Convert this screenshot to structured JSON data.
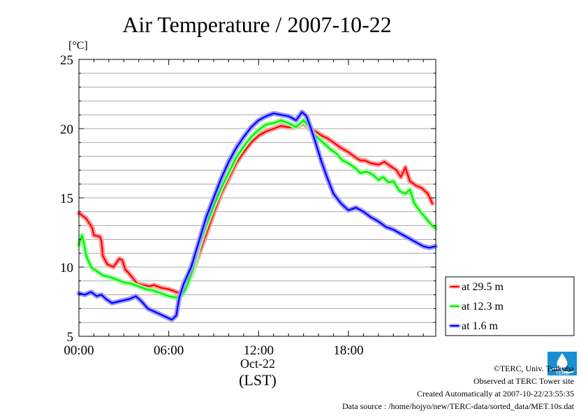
{
  "chart_data": {
    "type": "line",
    "title": "Air Temperature / 2007-10-22",
    "ylabel": "[°C]",
    "xlabel": "(LST)",
    "x_date_label": "Oct-22",
    "xlim": [
      0,
      23.83
    ],
    "ylim": [
      5,
      25
    ],
    "x_ticks": [
      {
        "value": 0,
        "label": "00:00"
      },
      {
        "value": 6,
        "label": "06:00"
      },
      {
        "value": 12,
        "label": "12:00"
      },
      {
        "value": 18,
        "label": "18:00"
      }
    ],
    "y_ticks": [
      {
        "value": 5,
        "label": "5"
      },
      {
        "value": 10,
        "label": "10"
      },
      {
        "value": 15,
        "label": "15"
      },
      {
        "value": 20,
        "label": "20"
      },
      {
        "value": 25,
        "label": "25"
      }
    ],
    "y_grid_step": 1,
    "grid": true,
    "legend_position": "right",
    "series": [
      {
        "name": "at 29.5 m",
        "color": "#ff0000",
        "halo": "#ff9b9b",
        "points": [
          [
            0,
            13.9
          ],
          [
            0.5,
            13.5
          ],
          [
            0.9,
            12.8
          ],
          [
            1.0,
            12.3
          ],
          [
            1.4,
            12.2
          ],
          [
            1.5,
            11.9
          ],
          [
            1.6,
            10.8
          ],
          [
            1.9,
            10.2
          ],
          [
            2.3,
            10.0
          ],
          [
            2.7,
            10.6
          ],
          [
            2.9,
            10.5
          ],
          [
            3.1,
            9.8
          ],
          [
            3.3,
            9.6
          ],
          [
            3.6,
            9.2
          ],
          [
            3.9,
            8.8
          ],
          [
            4.3,
            8.7
          ],
          [
            4.7,
            8.6
          ],
          [
            5.0,
            8.7
          ],
          [
            5.5,
            8.5
          ],
          [
            6.0,
            8.4
          ],
          [
            6.5,
            8.2
          ],
          [
            6.8,
            8.1
          ],
          [
            7.0,
            8.4
          ],
          [
            7.5,
            9.4
          ],
          [
            8.0,
            10.9
          ],
          [
            8.5,
            12.4
          ],
          [
            9.0,
            13.9
          ],
          [
            9.5,
            15.3
          ],
          [
            10.0,
            16.4
          ],
          [
            10.5,
            17.5
          ],
          [
            11.0,
            18.3
          ],
          [
            11.5,
            19.0
          ],
          [
            12.0,
            19.5
          ],
          [
            12.5,
            19.8
          ],
          [
            13.0,
            20.0
          ],
          [
            13.5,
            20.2
          ],
          [
            14.0,
            20.1
          ],
          [
            14.5,
            20.1
          ],
          [
            15.0,
            20.4
          ],
          [
            15.4,
            20.0
          ],
          [
            15.8,
            19.8
          ],
          [
            16.2,
            19.5
          ],
          [
            16.6,
            19.3
          ],
          [
            17.0,
            19.0
          ],
          [
            17.5,
            18.6
          ],
          [
            18.0,
            18.3
          ],
          [
            18.5,
            17.9
          ],
          [
            18.8,
            17.7
          ],
          [
            19.1,
            17.7
          ],
          [
            19.5,
            17.5
          ],
          [
            20.0,
            17.4
          ],
          [
            20.4,
            17.6
          ],
          [
            20.8,
            17.3
          ],
          [
            21.2,
            17.0
          ],
          [
            21.5,
            16.5
          ],
          [
            21.8,
            17.2
          ],
          [
            22.1,
            16.2
          ],
          [
            22.5,
            15.9
          ],
          [
            22.9,
            15.7
          ],
          [
            23.3,
            15.3
          ],
          [
            23.6,
            14.6
          ]
        ]
      },
      {
        "name": "at 12.3 m",
        "color": "#00ee00",
        "halo": "#9bff9b",
        "points": [
          [
            0,
            11.6
          ],
          [
            0.2,
            12.3
          ],
          [
            0.3,
            11.9
          ],
          [
            0.5,
            10.8
          ],
          [
            0.8,
            10.0
          ],
          [
            1.2,
            9.7
          ],
          [
            1.6,
            9.4
          ],
          [
            2.0,
            9.3
          ],
          [
            2.5,
            9.1
          ],
          [
            3.0,
            8.9
          ],
          [
            3.5,
            8.8
          ],
          [
            4.0,
            8.6
          ],
          [
            4.5,
            8.4
          ],
          [
            5.0,
            8.3
          ],
          [
            5.5,
            8.1
          ],
          [
            6.0,
            7.9
          ],
          [
            6.5,
            7.8
          ],
          [
            6.9,
            8.0
          ],
          [
            7.2,
            8.6
          ],
          [
            7.6,
            9.8
          ],
          [
            8.0,
            11.4
          ],
          [
            8.5,
            13.0
          ],
          [
            9.0,
            14.4
          ],
          [
            9.5,
            15.7
          ],
          [
            10.0,
            16.8
          ],
          [
            10.5,
            17.9
          ],
          [
            11.0,
            18.7
          ],
          [
            11.5,
            19.4
          ],
          [
            12.0,
            19.9
          ],
          [
            12.5,
            20.3
          ],
          [
            13.0,
            20.4
          ],
          [
            13.5,
            20.6
          ],
          [
            14.0,
            20.4
          ],
          [
            14.5,
            20.1
          ],
          [
            15.0,
            20.6
          ],
          [
            15.4,
            20.1
          ],
          [
            15.7,
            19.6
          ],
          [
            16.0,
            19.3
          ],
          [
            16.4,
            18.9
          ],
          [
            16.8,
            18.5
          ],
          [
            17.2,
            18.2
          ],
          [
            17.6,
            17.7
          ],
          [
            18.0,
            17.5
          ],
          [
            18.4,
            17.2
          ],
          [
            18.8,
            16.8
          ],
          [
            19.2,
            16.9
          ],
          [
            19.6,
            16.7
          ],
          [
            20.0,
            16.3
          ],
          [
            20.3,
            16.5
          ],
          [
            20.7,
            16.1
          ],
          [
            21.0,
            16.2
          ],
          [
            21.4,
            15.5
          ],
          [
            21.8,
            15.3
          ],
          [
            22.1,
            15.6
          ],
          [
            22.4,
            14.6
          ],
          [
            22.8,
            14.0
          ],
          [
            23.2,
            13.5
          ],
          [
            23.5,
            13.1
          ],
          [
            23.8,
            12.8
          ]
        ]
      },
      {
        "name": "at 1.6 m",
        "color": "#0000ff",
        "halo": "#9b9bff",
        "points": [
          [
            0,
            8.1
          ],
          [
            0.4,
            8.0
          ],
          [
            0.8,
            8.2
          ],
          [
            1.2,
            7.9
          ],
          [
            1.5,
            8.0
          ],
          [
            1.8,
            7.7
          ],
          [
            2.2,
            7.4
          ],
          [
            2.6,
            7.5
          ],
          [
            3.0,
            7.6
          ],
          [
            3.4,
            7.7
          ],
          [
            3.8,
            7.9
          ],
          [
            4.2,
            7.5
          ],
          [
            4.6,
            7.0
          ],
          [
            5.0,
            6.8
          ],
          [
            5.4,
            6.6
          ],
          [
            5.8,
            6.4
          ],
          [
            6.2,
            6.2
          ],
          [
            6.5,
            6.5
          ],
          [
            6.7,
            7.8
          ],
          [
            7.0,
            8.8
          ],
          [
            7.5,
            10.0
          ],
          [
            8.0,
            11.8
          ],
          [
            8.5,
            13.6
          ],
          [
            9.0,
            15.0
          ],
          [
            9.5,
            16.4
          ],
          [
            10.0,
            17.6
          ],
          [
            10.5,
            18.6
          ],
          [
            11.0,
            19.4
          ],
          [
            11.5,
            20.1
          ],
          [
            12.0,
            20.6
          ],
          [
            12.5,
            20.9
          ],
          [
            13.0,
            21.1
          ],
          [
            13.5,
            21.0
          ],
          [
            14.0,
            20.9
          ],
          [
            14.5,
            20.6
          ],
          [
            14.9,
            21.2
          ],
          [
            15.2,
            20.9
          ],
          [
            15.5,
            20.0
          ],
          [
            15.8,
            19.0
          ],
          [
            16.2,
            17.6
          ],
          [
            16.6,
            16.4
          ],
          [
            17.0,
            15.3
          ],
          [
            17.5,
            14.6
          ],
          [
            18.0,
            14.1
          ],
          [
            18.5,
            14.3
          ],
          [
            19.0,
            14.0
          ],
          [
            19.5,
            13.6
          ],
          [
            20.0,
            13.3
          ],
          [
            20.5,
            12.9
          ],
          [
            21.0,
            12.7
          ],
          [
            21.5,
            12.4
          ],
          [
            22.0,
            12.1
          ],
          [
            22.5,
            11.8
          ],
          [
            23.0,
            11.5
          ],
          [
            23.4,
            11.4
          ],
          [
            23.8,
            11.5
          ]
        ]
      }
    ]
  },
  "footer": {
    "copyright": "©TERC, Univ. Tsukuba",
    "observed": "Observed at TERC Tower site",
    "created": "Created Automatically at 2007-10-22/23:55:35",
    "source": "Data source : /home/hojyo/new/TERC-data/sorted_data/MET.10s.dat"
  },
  "logo": {
    "text": "TERC",
    "icon": "terc-logo-icon",
    "color": "#1a8fd0"
  }
}
